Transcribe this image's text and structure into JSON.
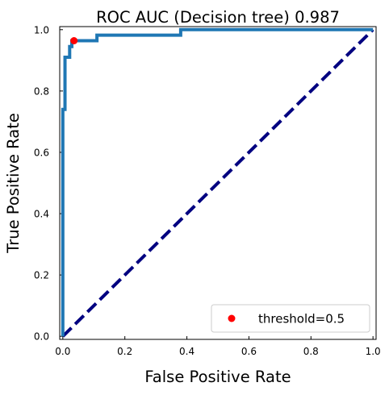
{
  "chart_data": {
    "type": "line",
    "title": "ROC AUC (Decision tree) 0.987",
    "xlabel": "False Positive Rate",
    "ylabel": "True Positive Rate",
    "xlim": [
      -0.01,
      1.01
    ],
    "ylim": [
      -0.01,
      1.01
    ],
    "xticks": [
      0.0,
      0.2,
      0.4,
      0.6,
      0.8,
      1.0
    ],
    "xtick_labels": [
      "0.0",
      "0.2",
      "0.4",
      "0.6",
      "0.8",
      "1.0"
    ],
    "yticks": [
      0.0,
      0.2,
      0.4,
      0.6,
      0.8,
      1.0
    ],
    "ytick_labels": [
      "0.0",
      "0.2",
      "0.4",
      "0.6",
      "0.8",
      "1.0"
    ],
    "grid": false,
    "legend_position": "lower-right",
    "series": [
      {
        "kind": "roc-curve",
        "color": "#1f77b4",
        "x": [
          0.0,
          0.0,
          0.007,
          0.007,
          0.015,
          0.015,
          0.022,
          0.022,
          0.029,
          0.029,
          0.07,
          0.07,
          0.11,
          0.11,
          0.38,
          0.38,
          1.0
        ],
        "y": [
          0.0,
          0.74,
          0.74,
          0.91,
          0.91,
          0.91,
          0.91,
          0.945,
          0.945,
          0.964,
          0.964,
          0.964,
          0.964,
          0.982,
          0.982,
          1.0,
          1.0
        ]
      },
      {
        "kind": "diagonal-reference",
        "color": "#000080",
        "dashed": true,
        "x": [
          0.0,
          1.0
        ],
        "y": [
          0.0,
          1.0
        ]
      },
      {
        "kind": "threshold-marker",
        "name": "threshold=0.5",
        "color": "#ff0000",
        "x": [
          0.036
        ],
        "y": [
          0.964
        ]
      }
    ]
  }
}
